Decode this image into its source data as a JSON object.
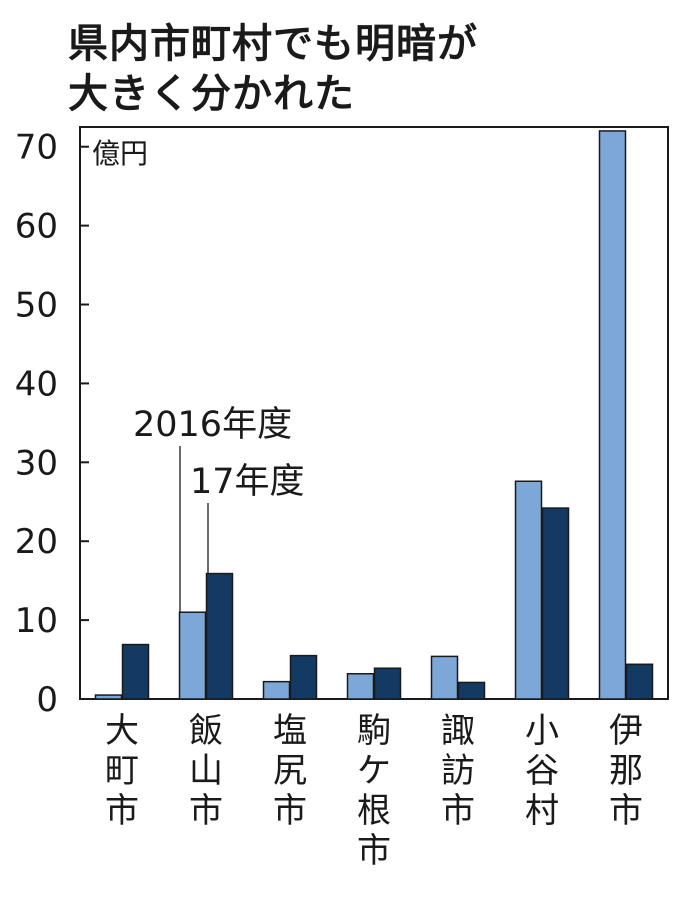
{
  "chart_data": {
    "type": "bar",
    "title_lines": [
      "県内市町村でも明暗が",
      "大きく分かれた"
    ],
    "unit_label": "億円",
    "categories": [
      "大町市",
      "飯山市",
      "塩尻市",
      "駒ケ根市",
      "諏訪市",
      "小谷村",
      "伊那市"
    ],
    "series": [
      {
        "name": "2016年度",
        "color": "#7da7d6",
        "values": [
          0.5,
          11,
          2.2,
          3.2,
          5.4,
          27.6,
          72
        ]
      },
      {
        "name": "17年度",
        "color": "#133a63",
        "values": [
          6.9,
          15.9,
          5.5,
          3.9,
          2.1,
          24.2,
          4.4
        ]
      }
    ],
    "y_ticks": [
      0,
      10,
      20,
      30,
      40,
      50,
      60,
      70
    ],
    "ylim": [
      0,
      72.5
    ],
    "grid": false,
    "legend_placement": "callout"
  }
}
